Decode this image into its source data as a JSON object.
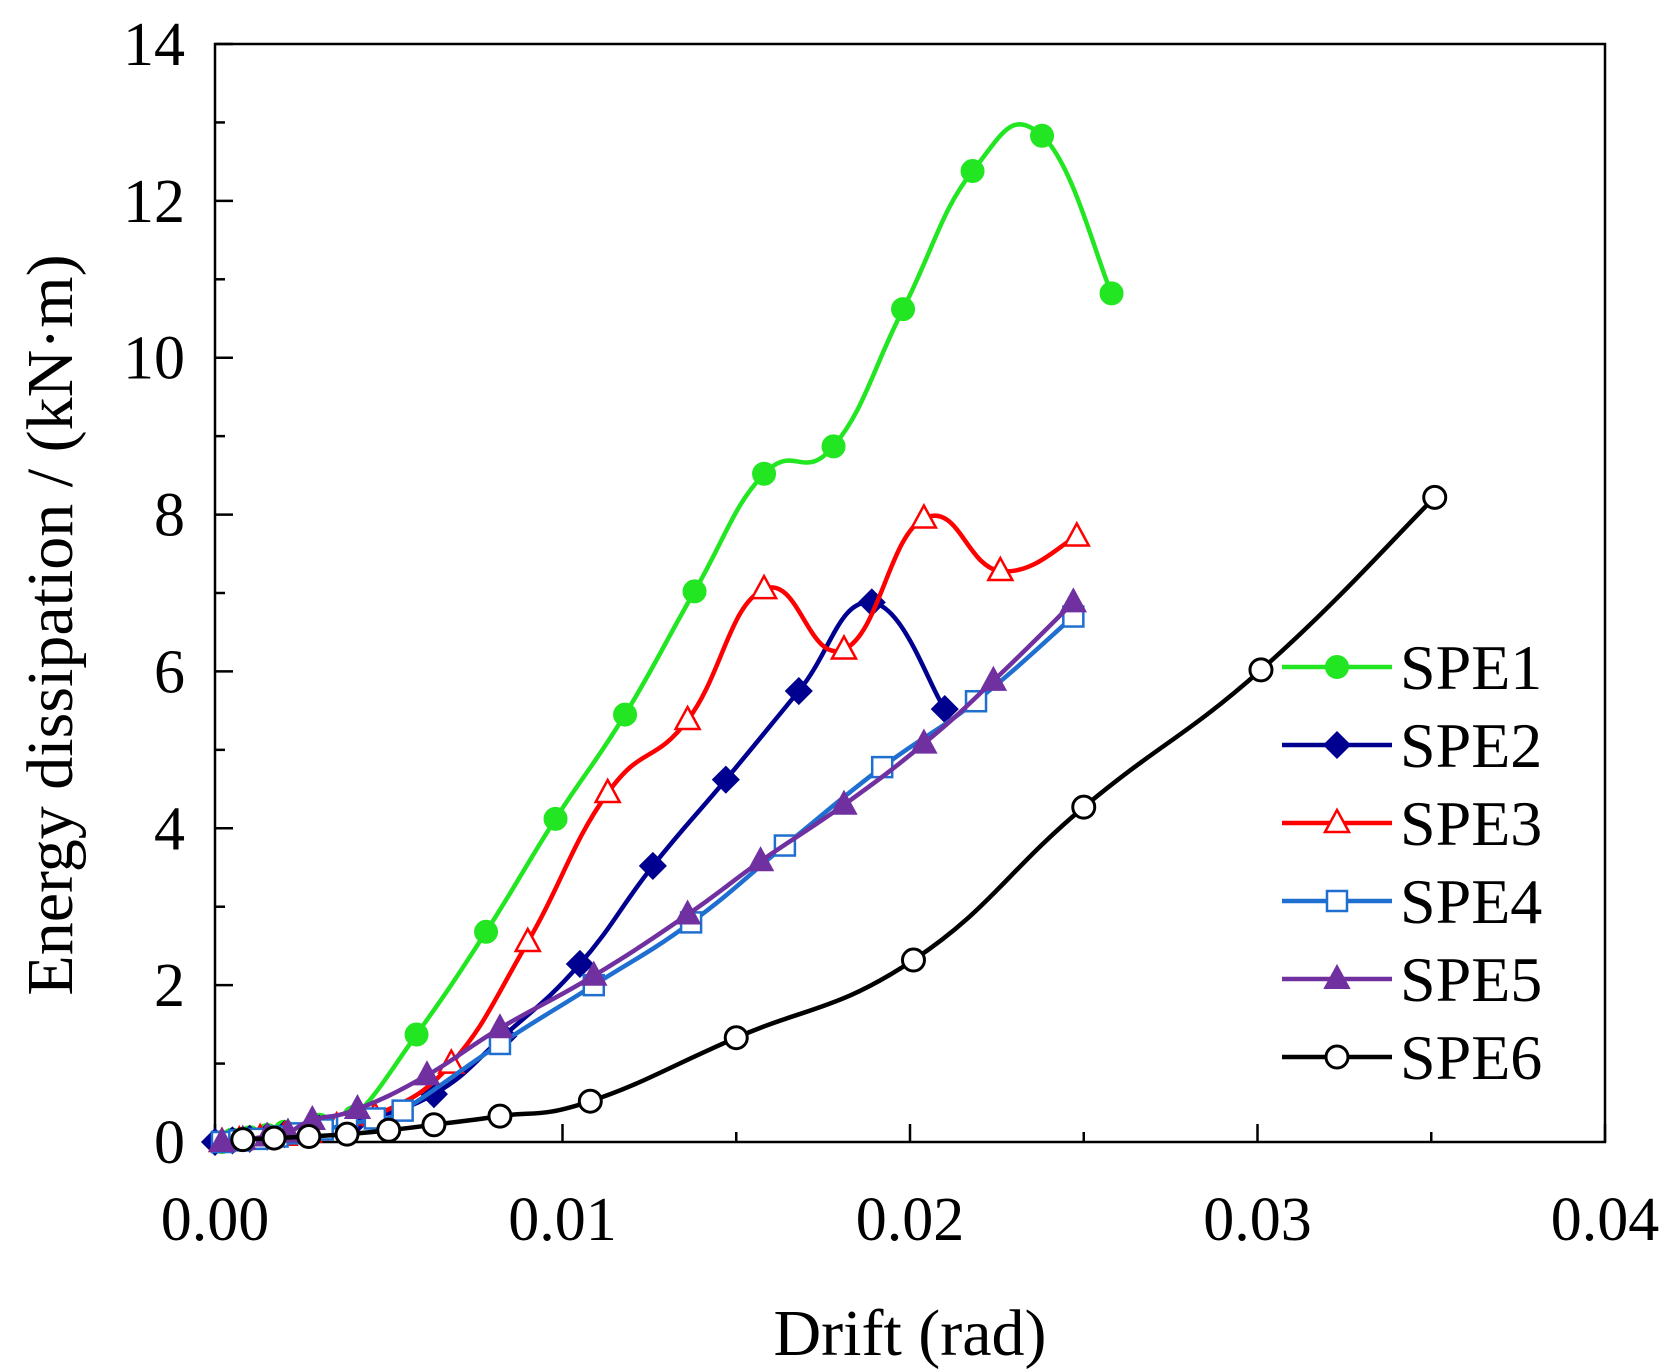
{
  "chart_data": {
    "type": "line",
    "title": "",
    "xlabel": "Drift (rad)",
    "ylabel": "Energy dissipation / (kN·m)",
    "xlim": [
      0,
      0.04
    ],
    "ylim": [
      0,
      14
    ],
    "xticks": [
      0,
      0.01,
      0.02,
      0.03,
      0.04
    ],
    "xtick_labels": [
      "0.00",
      "0.01",
      "0.02",
      "0.03",
      "0.04"
    ],
    "yticks": [
      0,
      2,
      4,
      6,
      8,
      10,
      12,
      14
    ],
    "ytick_labels": [
      "0",
      "2",
      "4",
      "6",
      "8",
      "10",
      "12",
      "14"
    ],
    "legend_position": "right",
    "series": [
      {
        "name": "SPE1",
        "color": "#22e622",
        "marker": "circle-filled",
        "x": [
          0.0002,
          0.0005,
          0.001,
          0.0015,
          0.002,
          0.003,
          0.004,
          0.0058,
          0.0078,
          0.0098,
          0.0118,
          0.0138,
          0.0158,
          0.0178,
          0.0198,
          0.0218,
          0.0238,
          0.0258
        ],
        "y": [
          0.0,
          0.03,
          0.06,
          0.09,
          0.13,
          0.22,
          0.32,
          1.37,
          2.68,
          4.12,
          5.45,
          7.02,
          8.52,
          8.87,
          10.62,
          12.38,
          12.83,
          10.82
        ]
      },
      {
        "name": "SPE2",
        "color": "#000090",
        "marker": "diamond-filled",
        "x": [
          0.0,
          0.0005,
          0.001,
          0.0015,
          0.002,
          0.003,
          0.004,
          0.0063,
          0.0083,
          0.0105,
          0.0126,
          0.0147,
          0.0168,
          0.0189,
          0.021
        ],
        "y": [
          0.0,
          0.02,
          0.04,
          0.07,
          0.1,
          0.17,
          0.25,
          0.61,
          1.35,
          2.27,
          3.52,
          4.62,
          5.75,
          6.88,
          5.52
        ]
      },
      {
        "name": "SPE3",
        "color": "#ff0000",
        "marker": "triangle-open",
        "x": [
          0.0002,
          0.0007,
          0.0013,
          0.002,
          0.0027,
          0.0035,
          0.0046,
          0.0068,
          0.009,
          0.0113,
          0.0136,
          0.0158,
          0.0181,
          0.0204,
          0.0226,
          0.0248
        ],
        "y": [
          0.0,
          0.02,
          0.05,
          0.08,
          0.12,
          0.2,
          0.33,
          1.0,
          2.55,
          4.45,
          5.38,
          7.05,
          6.28,
          7.95,
          7.28,
          7.72
        ]
      },
      {
        "name": "SPE4",
        "color": "#1f6fd0",
        "marker": "square-open",
        "x": [
          0.0002,
          0.0007,
          0.0012,
          0.0018,
          0.0024,
          0.0031,
          0.0038,
          0.0046,
          0.0054,
          0.0082,
          0.0109,
          0.0137,
          0.0164,
          0.0192,
          0.0219,
          0.0247
        ],
        "y": [
          0.0,
          0.02,
          0.04,
          0.07,
          0.11,
          0.16,
          0.22,
          0.3,
          0.4,
          1.25,
          2.0,
          2.8,
          3.78,
          4.78,
          5.62,
          6.7
        ]
      },
      {
        "name": "SPE5",
        "color": "#7030a0",
        "marker": "triangle-filled",
        "x": [
          0.0002,
          0.0008,
          0.0015,
          0.0021,
          0.0028,
          0.0041,
          0.0061,
          0.0082,
          0.0109,
          0.0136,
          0.0157,
          0.0181,
          0.0204,
          0.0224,
          0.0247
        ],
        "y": [
          0.0,
          0.03,
          0.07,
          0.12,
          0.28,
          0.42,
          0.85,
          1.45,
          2.12,
          2.9,
          3.58,
          4.3,
          5.08,
          5.88,
          6.88
        ]
      },
      {
        "name": "SPE6",
        "color": "#000000",
        "marker": "circle-open",
        "x": [
          0.0008,
          0.0017,
          0.0027,
          0.0038,
          0.005,
          0.0063,
          0.0082,
          0.0108,
          0.015,
          0.0201,
          0.025,
          0.0301,
          0.0351
        ],
        "y": [
          0.03,
          0.05,
          0.07,
          0.1,
          0.15,
          0.22,
          0.33,
          0.52,
          1.33,
          2.32,
          4.27,
          6.02,
          8.22
        ]
      }
    ]
  }
}
